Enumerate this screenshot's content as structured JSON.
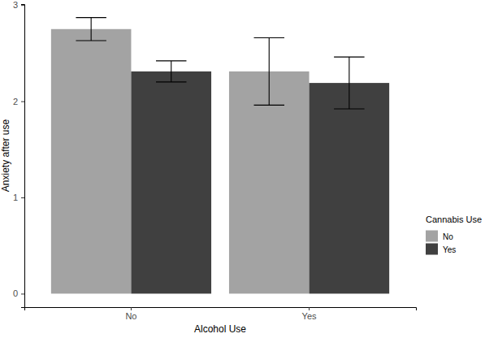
{
  "chart_data": {
    "type": "bar",
    "x_label": "Alcohol Use",
    "y_label": "Anxiety after use",
    "categories": [
      "No",
      "Yes"
    ],
    "series": [
      {
        "name": "No",
        "color": "#a3a3a3",
        "values": [
          2.75,
          2.31
        ],
        "errors": [
          0.12,
          0.35
        ]
      },
      {
        "name": "Yes",
        "color": "#404040",
        "values": [
          2.31,
          2.19
        ],
        "errors": [
          0.11,
          0.27
        ]
      }
    ],
    "legend_title": "Cannabis Use",
    "legend": "right",
    "ylim": [
      -0.14,
      3.01
    ],
    "yticks": [
      0,
      1,
      2,
      3
    ],
    "grid": false
  }
}
